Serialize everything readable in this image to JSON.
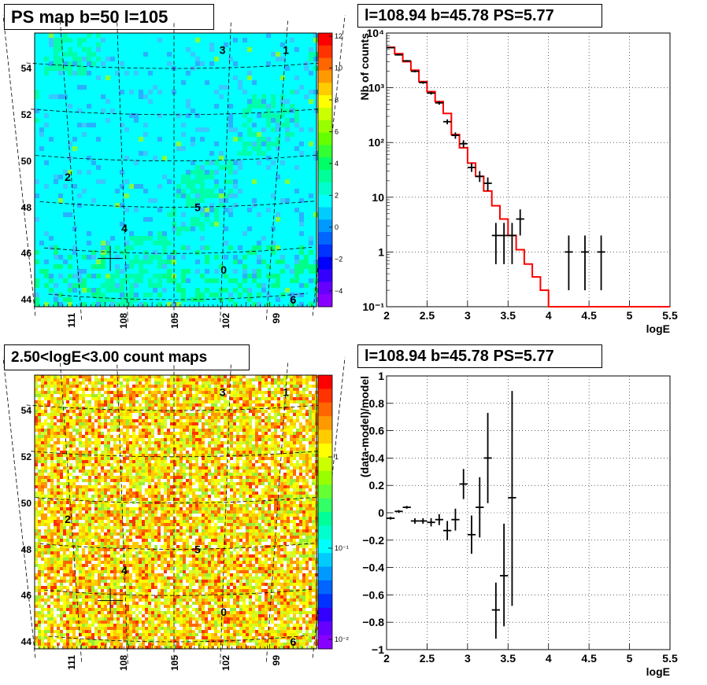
{
  "panels": {
    "map_top": {
      "title": "PS map b=50 l=105",
      "colorbar_ticks": [
        "12",
        "10",
        "8",
        "6",
        "4",
        "2",
        "0",
        "−2",
        "−4"
      ],
      "colorbar_values": [
        12,
        10,
        8,
        6,
        4,
        2,
        0,
        -2,
        -4
      ],
      "colorbar_range": [
        -5,
        12.2
      ]
    },
    "map_bottom": {
      "title": "2.50<logE<3.00 count maps",
      "colorbar_ticks": [
        "1",
        "10⁻¹",
        "10⁻²"
      ]
    },
    "shared_map": {
      "lat_ticks": [
        "54",
        "52",
        "50",
        "48",
        "46",
        "44"
      ],
      "lon_ticks": [
        "111",
        "108",
        "105",
        "102",
        "99"
      ],
      "source_labels": [
        "0",
        "1",
        "2",
        "3",
        "4",
        "5",
        "6"
      ]
    },
    "spectrum": {
      "title": "l=108.94 b=45.78 PS=5.77",
      "xlabel": "logE",
      "ylabel": "Nb of counts",
      "xticks": [
        "2",
        "2.5",
        "3",
        "3.5",
        "4",
        "4.5",
        "5",
        "5.5"
      ],
      "yticks": [
        "10⁻¹",
        "1",
        "10",
        "10²",
        "10³",
        "10⁴"
      ]
    },
    "residual": {
      "title": "l=108.94 b=45.78 PS=5.77",
      "xlabel": "logE",
      "ylabel": "(data-model)/model",
      "xticks": [
        "2",
        "2.5",
        "3",
        "3.5",
        "4",
        "4.5",
        "5",
        "5.5"
      ],
      "yticks": [
        "1",
        "0.8",
        "0.6",
        "0.4",
        "0.2",
        "0",
        "−0.2",
        "−0.4",
        "−0.6",
        "−0.8",
        "−1"
      ]
    }
  },
  "colors": {
    "model_line": "#ff0000",
    "data": "#000000",
    "map_background": "#00ffff"
  },
  "chart_data": [
    {
      "type": "heatmap",
      "lat_ticks": [
        54,
        52,
        50,
        48,
        46,
        44
      ],
      "lon_ticks": [
        111,
        108,
        105,
        102,
        99
      ],
      "colorscale_range": [
        -5,
        12.2
      ],
      "sources": [
        {
          "label": "0",
          "lon": 101.9,
          "lat": 45.3
        },
        {
          "label": "1",
          "lon": 99.0,
          "lat": 54.8
        },
        {
          "label": "2",
          "lon": 111.2,
          "lat": 49.3
        },
        {
          "label": "3",
          "lon": 102.4,
          "lat": 54.8
        },
        {
          "label": "4",
          "lon": 108.0,
          "lat": 47.1
        },
        {
          "label": "5",
          "lon": 103.6,
          "lat": 48.0
        },
        {
          "label": "6",
          "lon": 97.4,
          "lat": 44.0
        }
      ],
      "marker": {
        "lon": 108.94,
        "lat": 45.78
      }
    },
    {
      "type": "heatmap",
      "lat_ticks": [
        54,
        52,
        50,
        48,
        46,
        44
      ],
      "lon_ticks": [
        111,
        108,
        105,
        102,
        99
      ],
      "colorscale": "log",
      "colorscale_ticks": [
        1,
        0.1,
        0.01
      ],
      "marker": {
        "lon": 108.94,
        "lat": 45.78
      }
    },
    {
      "type": "line",
      "xlim": [
        2,
        5.5
      ],
      "ylim": [
        0.1,
        10000
      ],
      "yscale": "log",
      "grid": true,
      "model_steps": [
        {
          "x0": 2.0,
          "x1": 2.1,
          "y": 5500
        },
        {
          "x0": 2.1,
          "x1": 2.2,
          "y": 4200
        },
        {
          "x0": 2.2,
          "x1": 2.3,
          "y": 3000
        },
        {
          "x0": 2.3,
          "x1": 2.4,
          "y": 2100
        },
        {
          "x0": 2.4,
          "x1": 2.5,
          "y": 1300
        },
        {
          "x0": 2.5,
          "x1": 2.6,
          "y": 850
        },
        {
          "x0": 2.6,
          "x1": 2.7,
          "y": 560
        },
        {
          "x0": 2.7,
          "x1": 2.8,
          "y": 340
        },
        {
          "x0": 2.8,
          "x1": 2.9,
          "y": 140
        },
        {
          "x0": 2.9,
          "x1": 3.0,
          "y": 80
        },
        {
          "x0": 3.0,
          "x1": 3.1,
          "y": 42
        },
        {
          "x0": 3.1,
          "x1": 3.2,
          "y": 24
        },
        {
          "x0": 3.2,
          "x1": 3.3,
          "y": 13
        },
        {
          "x0": 3.3,
          "x1": 3.4,
          "y": 7
        },
        {
          "x0": 3.4,
          "x1": 3.5,
          "y": 4
        },
        {
          "x0": 3.5,
          "x1": 3.6,
          "y": 2
        },
        {
          "x0": 3.6,
          "x1": 3.7,
          "y": 1.1
        },
        {
          "x0": 3.7,
          "x1": 3.8,
          "y": 0.6
        },
        {
          "x0": 3.8,
          "x1": 3.9,
          "y": 0.35
        },
        {
          "x0": 3.9,
          "x1": 4.0,
          "y": 0.2
        },
        {
          "x0": 4.0,
          "x1": 5.5,
          "y": 0.1
        }
      ],
      "data_points": [
        {
          "x": 2.05,
          "y": 5400,
          "ylo": 5250,
          "yhi": 5550
        },
        {
          "x": 2.15,
          "y": 4000,
          "ylo": 3880,
          "yhi": 4120
        },
        {
          "x": 2.25,
          "y": 3100,
          "ylo": 2990,
          "yhi": 3210
        },
        {
          "x": 2.35,
          "y": 2000,
          "ylo": 1910,
          "yhi": 2090
        },
        {
          "x": 2.45,
          "y": 1250,
          "ylo": 1180,
          "yhi": 1320
        },
        {
          "x": 2.55,
          "y": 800,
          "ylo": 750,
          "yhi": 850
        },
        {
          "x": 2.65,
          "y": 530,
          "ylo": 490,
          "yhi": 570
        },
        {
          "x": 2.75,
          "y": 240,
          "ylo": 215,
          "yhi": 265
        },
        {
          "x": 2.85,
          "y": 135,
          "ylo": 117,
          "yhi": 153
        },
        {
          "x": 2.95,
          "y": 95,
          "ylo": 80,
          "yhi": 110
        },
        {
          "x": 3.05,
          "y": 35,
          "ylo": 29,
          "yhi": 42
        },
        {
          "x": 3.15,
          "y": 24,
          "ylo": 19,
          "yhi": 30
        },
        {
          "x": 3.25,
          "y": 18,
          "ylo": 13,
          "yhi": 23
        },
        {
          "x": 3.35,
          "y": 2,
          "ylo": 0.6,
          "yhi": 3.4
        },
        {
          "x": 3.45,
          "y": 2,
          "ylo": 0.6,
          "yhi": 3.4
        },
        {
          "x": 3.55,
          "y": 2,
          "ylo": 0.6,
          "yhi": 3.4
        },
        {
          "x": 3.65,
          "y": 4,
          "ylo": 2,
          "yhi": 6
        },
        {
          "x": 4.25,
          "y": 1,
          "ylo": 0.2,
          "yhi": 2
        },
        {
          "x": 4.45,
          "y": 1,
          "ylo": 0.2,
          "yhi": 2
        },
        {
          "x": 4.65,
          "y": 1,
          "ylo": 0.2,
          "yhi": 2
        }
      ]
    },
    {
      "type": "scatter",
      "xlim": [
        2,
        5.5
      ],
      "ylim": [
        -1,
        1
      ],
      "grid": true,
      "data_points": [
        {
          "x": 2.05,
          "y": -0.04,
          "ylo": -0.05,
          "yhi": -0.03
        },
        {
          "x": 2.15,
          "y": 0.01,
          "ylo": 0.0,
          "yhi": 0.02
        },
        {
          "x": 2.25,
          "y": 0.04,
          "ylo": 0.03,
          "yhi": 0.05
        },
        {
          "x": 2.35,
          "y": -0.06,
          "ylo": -0.08,
          "yhi": -0.04
        },
        {
          "x": 2.45,
          "y": -0.06,
          "ylo": -0.08,
          "yhi": -0.04
        },
        {
          "x": 2.55,
          "y": -0.07,
          "ylo": -0.1,
          "yhi": -0.04
        },
        {
          "x": 2.65,
          "y": -0.05,
          "ylo": -0.09,
          "yhi": -0.01
        },
        {
          "x": 2.75,
          "y": -0.13,
          "ylo": -0.2,
          "yhi": -0.06
        },
        {
          "x": 2.85,
          "y": -0.05,
          "ylo": -0.13,
          "yhi": 0.03
        },
        {
          "x": 2.95,
          "y": 0.21,
          "ylo": 0.1,
          "yhi": 0.32
        },
        {
          "x": 3.05,
          "y": -0.16,
          "ylo": -0.3,
          "yhi": -0.02
        },
        {
          "x": 3.15,
          "y": 0.04,
          "ylo": -0.18,
          "yhi": 0.26
        },
        {
          "x": 3.25,
          "y": 0.4,
          "ylo": 0.07,
          "yhi": 0.73
        },
        {
          "x": 3.35,
          "y": -0.71,
          "ylo": -0.92,
          "yhi": -0.51
        },
        {
          "x": 3.45,
          "y": -0.46,
          "ylo": -0.83,
          "yhi": -0.08
        },
        {
          "x": 3.55,
          "y": 0.11,
          "ylo": -0.68,
          "yhi": 0.89
        }
      ]
    }
  ]
}
